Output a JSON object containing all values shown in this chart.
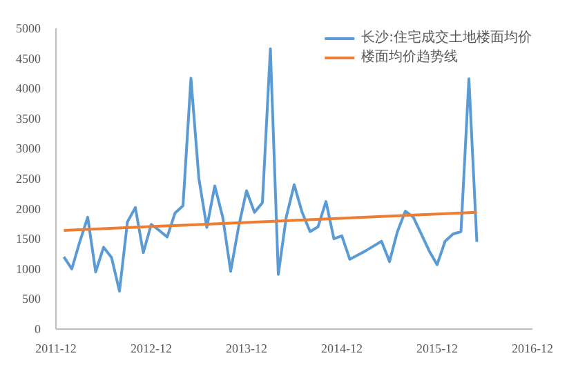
{
  "chart_data": {
    "type": "line",
    "x": [
      "2012-01",
      "2012-02",
      "2012-03",
      "2012-04",
      "2012-05",
      "2012-06",
      "2012-07",
      "2012-08",
      "2012-09",
      "2012-10",
      "2012-11",
      "2012-12",
      "2013-01",
      "2013-02",
      "2013-03",
      "2013-04",
      "2013-05",
      "2013-06",
      "2013-07",
      "2013-08",
      "2013-09",
      "2013-10",
      "2013-11",
      "2013-12",
      "2014-01",
      "2014-02",
      "2014-03",
      "2014-04",
      "2014-05",
      "2014-06",
      "2014-07",
      "2014-08",
      "2014-09",
      "2014-10",
      "2014-11",
      "2014-12",
      "2015-01",
      "2015-02",
      "2015-03",
      "2015-04",
      "2015-05",
      "2015-06",
      "2015-07",
      "2015-08",
      "2015-09",
      "2015-10",
      "2015-11",
      "2015-12",
      "2016-01",
      "2016-02",
      "2016-03",
      "2016-04",
      "2016-05"
    ],
    "series": [
      {
        "name": "长沙:住宅成交土地楼面均价",
        "color": "#5b9bd5",
        "values": [
          1200,
          1000,
          1450,
          1860,
          950,
          1360,
          1190,
          630,
          1780,
          2020,
          1270,
          1740,
          1640,
          1530,
          1930,
          2050,
          4170,
          2500,
          1690,
          2380,
          1860,
          960,
          1700,
          2300,
          1940,
          2100,
          4660,
          910,
          1860,
          2400,
          1940,
          1620,
          1700,
          2120,
          1500,
          1550,
          1160,
          1230,
          1300,
          1380,
          1460,
          1120,
          1620,
          1960,
          1860,
          1580,
          1300,
          1070,
          1460,
          1580,
          1620,
          4160,
          1450
        ]
      },
      {
        "name": "楼面均价趋势线",
        "color": "#ed7d31",
        "x": [
          "2012-01",
          "2016-05"
        ],
        "values": [
          1640,
          1940
        ]
      }
    ],
    "xlim": [
      "2011-12",
      "2016-12"
    ],
    "xticks": [
      "2011-12",
      "2012-12",
      "2013-12",
      "2014-12",
      "2015-12",
      "2016-12"
    ],
    "ylim": [
      0,
      5000
    ],
    "yticks": [
      0,
      500,
      1000,
      1500,
      2000,
      2500,
      3000,
      3500,
      4000,
      4500,
      5000
    ],
    "grid": false,
    "legend": "top right",
    "marker": "none",
    "line_style": "solid"
  }
}
